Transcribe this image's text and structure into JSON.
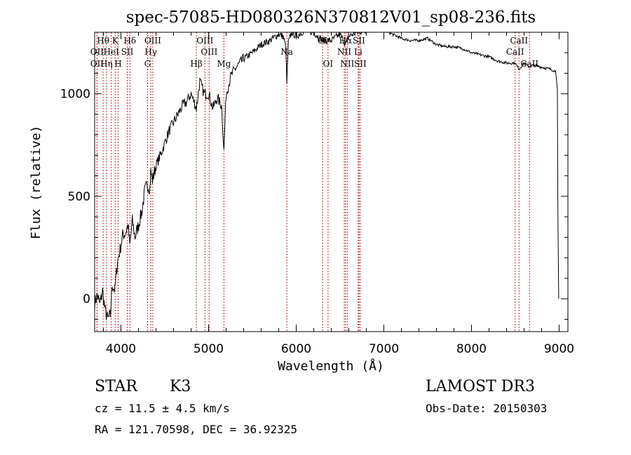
{
  "chart_data": {
    "type": "line",
    "title": "spec-57085-HD080326N370812V01_sp08-236.fits",
    "xlabel": "Wavelength (Å)",
    "ylabel": "Flux (relative)",
    "xlim": [
      3700,
      9100
    ],
    "ylim": [
      -160,
      1300
    ],
    "xticks": [
      4000,
      5000,
      6000,
      7000,
      8000,
      9000
    ],
    "yticks": [
      0,
      500,
      1000
    ],
    "series": [
      {
        "name": "flux",
        "x": [
          3700,
          3730,
          3760,
          3790,
          3820,
          3850,
          3880,
          3900,
          3930,
          3960,
          3990,
          4020,
          4050,
          4080,
          4101,
          4130,
          4160,
          4200,
          4240,
          4270,
          4300,
          4330,
          4340,
          4360,
          4400,
          4450,
          4500,
          4550,
          4600,
          4650,
          4700,
          4750,
          4800,
          4861,
          4900,
          4950,
          5000,
          5050,
          5100,
          5150,
          5175,
          5200,
          5250,
          5300,
          5400,
          5500,
          5600,
          5700,
          5800,
          5850,
          5880,
          5893,
          5910,
          5950,
          6000,
          6100,
          6200,
          6300,
          6400,
          6500,
          6563,
          6600,
          6700,
          6800,
          6900,
          7000,
          7100,
          7200,
          7300,
          7400,
          7500,
          7600,
          7700,
          7800,
          7900,
          8000,
          8100,
          8200,
          8300,
          8400,
          8498,
          8542,
          8600,
          8662,
          8700,
          8800,
          8900,
          8960,
          8980,
          8985,
          8990,
          8995
        ],
        "y": [
          -20,
          20,
          -30,
          40,
          -60,
          -100,
          -80,
          70,
          40,
          180,
          240,
          310,
          320,
          360,
          260,
          380,
          300,
          360,
          430,
          520,
          560,
          540,
          620,
          580,
          650,
          700,
          760,
          820,
          860,
          900,
          940,
          960,
          1000,
          930,
          1060,
          1000,
          1000,
          930,
          980,
          940,
          720,
          1000,
          1080,
          1120,
          1170,
          1200,
          1240,
          1260,
          1290,
          1280,
          1230,
          1050,
          1250,
          1300,
          1280,
          1310,
          1300,
          1260,
          1260,
          1290,
          1240,
          1280,
          1300,
          1310,
          1320,
          1310,
          1290,
          1270,
          1260,
          1260,
          1270,
          1240,
          1230,
          1230,
          1220,
          1200,
          1190,
          1180,
          1160,
          1150,
          1150,
          1120,
          1150,
          1130,
          1140,
          1130,
          1120,
          1110,
          1020,
          500,
          200,
          0
        ]
      }
    ],
    "lines": [
      {
        "x": 3797,
        "label": "Hθ",
        "row": 1
      },
      {
        "x": 3727,
        "label": "OII",
        "row": 2
      },
      {
        "x": 3727,
        "label": "OII",
        "row": 3
      },
      {
        "x": 3835,
        "label": "Hη",
        "row": 3
      },
      {
        "x": 3889,
        "label": "HeI",
        "row": 2
      },
      {
        "x": 3934,
        "label": "K",
        "row": 1
      },
      {
        "x": 3968,
        "label": "H",
        "row": 3
      },
      {
        "x": 4072,
        "label": "SII",
        "row": 2
      },
      {
        "x": 4102,
        "label": "Hδ",
        "row": 1
      },
      {
        "x": 4341,
        "label": "Hγ",
        "row": 2
      },
      {
        "x": 4363,
        "label": "OIII",
        "row": 1
      },
      {
        "x": 4304,
        "label": "G",
        "row": 3
      },
      {
        "x": 4861,
        "label": "Hβ",
        "row": 3
      },
      {
        "x": 4959,
        "label": "OIII",
        "row": 1
      },
      {
        "x": 5007,
        "label": "OIII",
        "row": 2
      },
      {
        "x": 5175,
        "label": "Mg",
        "row": 3
      },
      {
        "x": 5893,
        "label": "Na",
        "row": 2
      },
      {
        "x": 6300,
        "label": "OI",
        "row": 1
      },
      {
        "x": 6363,
        "label": "OI",
        "row": 3
      },
      {
        "x": 6548,
        "label": "NII",
        "row": 2
      },
      {
        "x": 6563,
        "label": "Hα",
        "row": 1
      },
      {
        "x": 6583,
        "label": "NII",
        "row": 3
      },
      {
        "x": 6707,
        "label": "Li",
        "row": 2
      },
      {
        "x": 6716,
        "label": "SII",
        "row": 1
      },
      {
        "x": 6731,
        "label": "SII",
        "row": 3
      },
      {
        "x": 8498,
        "label": "CaII",
        "row": 2
      },
      {
        "x": 8542,
        "label": "CaII",
        "row": 1
      },
      {
        "x": 8662,
        "label": "CaII",
        "row": 3
      }
    ]
  },
  "info": {
    "class_label": "STAR",
    "subclass": "K3",
    "survey": "LAMOST DR3",
    "redshift": "cz = 11.5 ± 4.5 km/s",
    "obs_date": "Obs-Date: 20150303",
    "coords": "RA = 121.70598, DEC =  36.92325"
  }
}
